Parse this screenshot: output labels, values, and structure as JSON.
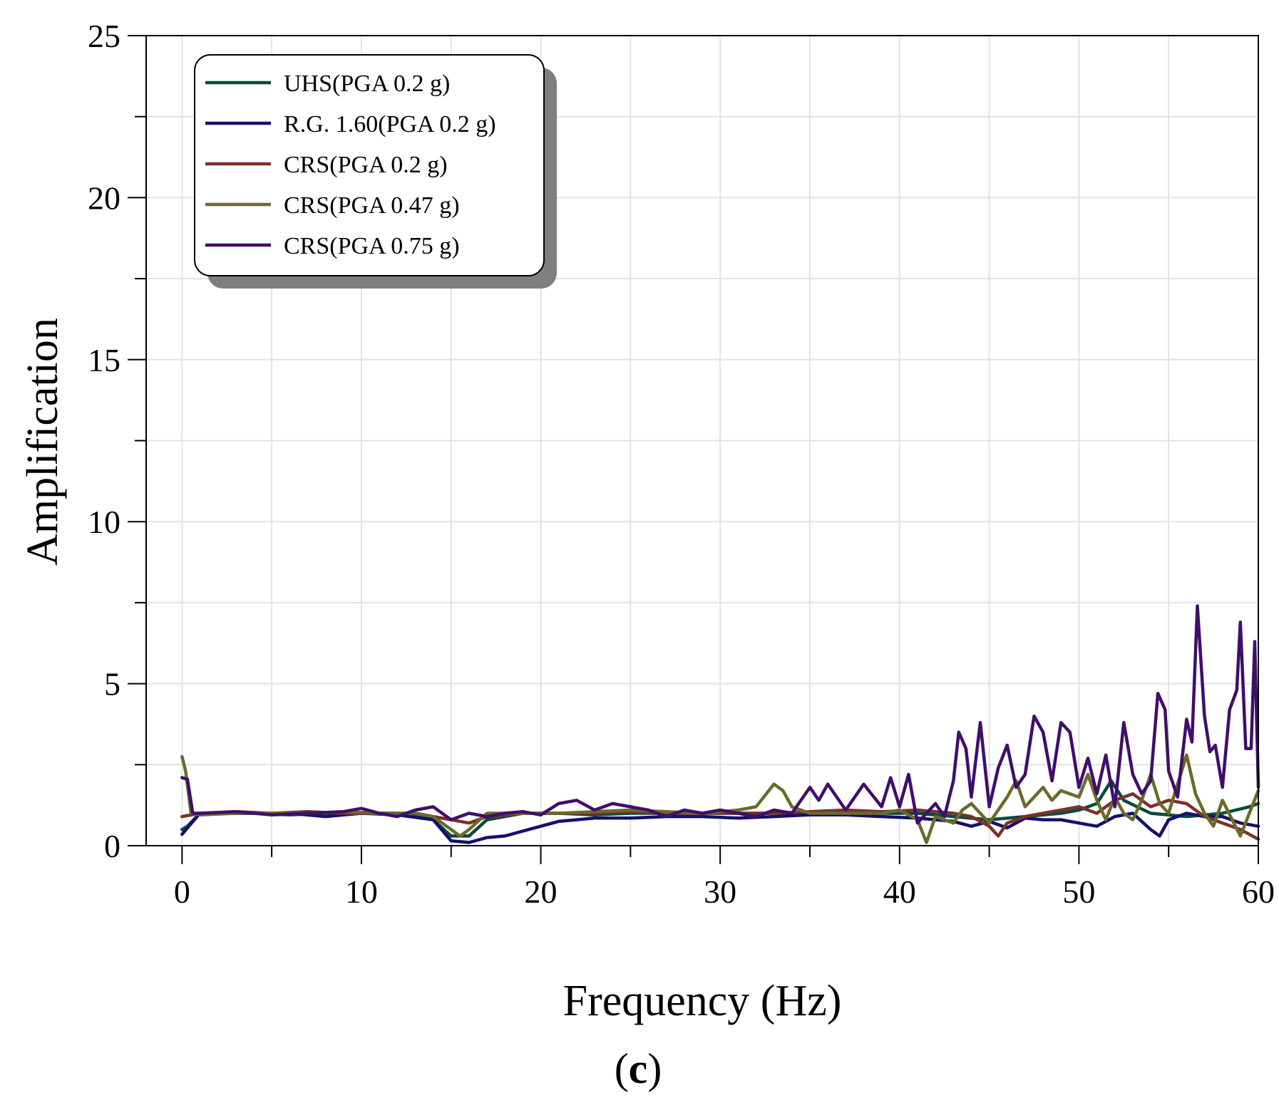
{
  "chart_data": {
    "type": "line",
    "title": "",
    "xlabel": "Frequency (Hz)",
    "ylabel": "Amplification",
    "caption": {
      "open": "(",
      "letter": "c",
      "close": ")"
    },
    "xlim": [
      -2,
      60
    ],
    "ylim": [
      0,
      25
    ],
    "xticks": [
      0,
      10,
      20,
      30,
      40,
      50,
      60
    ],
    "yticks": [
      0,
      5,
      10,
      15,
      20,
      25
    ],
    "xtick_labels": [
      "0",
      "10",
      "20",
      "30",
      "40",
      "50",
      "60"
    ],
    "ytick_labels": [
      "0",
      "5",
      "10",
      "15",
      "20",
      "25"
    ],
    "grid": true,
    "legend_position": "top-left",
    "series": [
      {
        "name": "UHS(PGA 0.2 g)",
        "color": "#0b4a3e",
        "points": [
          [
            0,
            0.5
          ],
          [
            0.3,
            0.6
          ],
          [
            1,
            1
          ],
          [
            2,
            1
          ],
          [
            4,
            1
          ],
          [
            6,
            0.95
          ],
          [
            8,
            1
          ],
          [
            10,
            1
          ],
          [
            12,
            1
          ],
          [
            13,
            0.9
          ],
          [
            14,
            0.8
          ],
          [
            15,
            0.3
          ],
          [
            16,
            0.3
          ],
          [
            17,
            0.8
          ],
          [
            19,
            1
          ],
          [
            21,
            1
          ],
          [
            23,
            0.95
          ],
          [
            25,
            1
          ],
          [
            27,
            1
          ],
          [
            29,
            1
          ],
          [
            31,
            1
          ],
          [
            33,
            1
          ],
          [
            35,
            1
          ],
          [
            37,
            1
          ],
          [
            39,
            1
          ],
          [
            41,
            1
          ],
          [
            43,
            0.9
          ],
          [
            45,
            0.8
          ],
          [
            47,
            0.9
          ],
          [
            49,
            1
          ],
          [
            50,
            1.1
          ],
          [
            51,
            1.3
          ],
          [
            51.8,
            2.0
          ],
          [
            52.5,
            1.4
          ],
          [
            54,
            1
          ],
          [
            56,
            0.9
          ],
          [
            58,
            1
          ],
          [
            59.5,
            1.2
          ],
          [
            60,
            1.3
          ]
        ]
      },
      {
        "name": "R.G. 1.60(PGA 0.2 g)",
        "color": "#13106e",
        "points": [
          [
            0,
            0.35
          ],
          [
            0.3,
            0.55
          ],
          [
            1,
            1
          ],
          [
            2,
            1
          ],
          [
            4,
            1
          ],
          [
            6,
            1
          ],
          [
            8,
            0.9
          ],
          [
            10,
            1
          ],
          [
            12,
            0.95
          ],
          [
            14,
            0.8
          ],
          [
            15,
            0.15
          ],
          [
            16,
            0.1
          ],
          [
            17,
            0.25
          ],
          [
            18,
            0.3
          ],
          [
            19,
            0.45
          ],
          [
            20,
            0.6
          ],
          [
            21,
            0.75
          ],
          [
            22,
            0.8
          ],
          [
            23,
            0.85
          ],
          [
            25,
            0.85
          ],
          [
            27,
            0.9
          ],
          [
            29,
            0.9
          ],
          [
            31,
            0.85
          ],
          [
            33,
            0.9
          ],
          [
            35,
            0.95
          ],
          [
            37,
            0.95
          ],
          [
            39,
            0.9
          ],
          [
            41,
            0.85
          ],
          [
            43,
            0.75
          ],
          [
            44,
            0.6
          ],
          [
            45,
            0.75
          ],
          [
            46,
            0.55
          ],
          [
            47,
            0.85
          ],
          [
            48,
            0.8
          ],
          [
            49,
            0.8
          ],
          [
            50,
            0.7
          ],
          [
            51,
            0.6
          ],
          [
            52,
            0.9
          ],
          [
            53,
            1.0
          ],
          [
            54,
            0.5
          ],
          [
            54.5,
            0.3
          ],
          [
            55,
            0.8
          ],
          [
            56,
            1
          ],
          [
            57,
            0.9
          ],
          [
            58,
            0.9
          ],
          [
            59,
            0.7
          ],
          [
            60,
            0.6
          ]
        ]
      },
      {
        "name": "CRS(PGA 0.2 g)",
        "color": "#7a3228",
        "points": [
          [
            0,
            0.9
          ],
          [
            1,
            1
          ],
          [
            3,
            1.05
          ],
          [
            5,
            1
          ],
          [
            7,
            1.05
          ],
          [
            9,
            1
          ],
          [
            11,
            1
          ],
          [
            13,
            1
          ],
          [
            14,
            0.9
          ],
          [
            15,
            0.8
          ],
          [
            16,
            0.7
          ],
          [
            17,
            0.9
          ],
          [
            19,
            1
          ],
          [
            21,
            1
          ],
          [
            23,
            1
          ],
          [
            25,
            1.05
          ],
          [
            27,
            1
          ],
          [
            29,
            1
          ],
          [
            31,
            1
          ],
          [
            33,
            1
          ],
          [
            35,
            1.05
          ],
          [
            37,
            1.1
          ],
          [
            39,
            1.05
          ],
          [
            41,
            1.1
          ],
          [
            43,
            1
          ],
          [
            44,
            0.9
          ],
          [
            45,
            0.6
          ],
          [
            45.5,
            0.3
          ],
          [
            46,
            0.7
          ],
          [
            47,
            0.9
          ],
          [
            48,
            1
          ],
          [
            49,
            1.1
          ],
          [
            50,
            1.2
          ],
          [
            51,
            1
          ],
          [
            52,
            1.4
          ],
          [
            53,
            1.6
          ],
          [
            54,
            1.2
          ],
          [
            55,
            1.4
          ],
          [
            56,
            1.3
          ],
          [
            57,
            0.9
          ],
          [
            58,
            0.7
          ],
          [
            59,
            0.5
          ],
          [
            60,
            0.2
          ]
        ]
      },
      {
        "name": "CRS(PGA 0.47 g)",
        "color": "#6a6a2c",
        "points": [
          [
            0,
            2.75
          ],
          [
            0.2,
            2.3
          ],
          [
            0.5,
            1.0
          ],
          [
            1,
            0.95
          ],
          [
            3,
            1
          ],
          [
            5,
            1
          ],
          [
            7,
            1
          ],
          [
            9,
            1.05
          ],
          [
            11,
            1
          ],
          [
            13,
            1
          ],
          [
            14,
            0.9
          ],
          [
            15,
            0.5
          ],
          [
            15.5,
            0.3
          ],
          [
            16,
            0.5
          ],
          [
            17,
            1
          ],
          [
            19,
            1
          ],
          [
            21,
            1
          ],
          [
            23,
            1.05
          ],
          [
            25,
            1.1
          ],
          [
            27,
            1.05
          ],
          [
            29,
            1
          ],
          [
            31,
            1.1
          ],
          [
            32,
            1.2
          ],
          [
            33,
            1.9
          ],
          [
            33.5,
            1.7
          ],
          [
            34,
            1.2
          ],
          [
            35,
            1
          ],
          [
            37,
            1
          ],
          [
            39,
            1
          ],
          [
            40,
            1.1
          ],
          [
            41,
            0.8
          ],
          [
            41.5,
            0.1
          ],
          [
            42,
            0.9
          ],
          [
            43,
            0.7
          ],
          [
            43.5,
            1.1
          ],
          [
            44,
            1.3
          ],
          [
            45,
            0.7
          ],
          [
            46,
            1.5
          ],
          [
            46.5,
            2.0
          ],
          [
            47,
            1.2
          ],
          [
            48,
            1.8
          ],
          [
            48.5,
            1.4
          ],
          [
            49,
            1.7
          ],
          [
            50,
            1.5
          ],
          [
            50.5,
            2.2
          ],
          [
            51,
            1.4
          ],
          [
            51.5,
            0.8
          ],
          [
            52,
            1.5
          ],
          [
            52.5,
            1.0
          ],
          [
            53,
            0.8
          ],
          [
            53.5,
            1.4
          ],
          [
            54,
            2.2
          ],
          [
            54.5,
            1.3
          ],
          [
            55,
            1.0
          ],
          [
            56,
            2.8
          ],
          [
            56.5,
            1.6
          ],
          [
            57,
            1.0
          ],
          [
            57.5,
            0.6
          ],
          [
            58,
            1.4
          ],
          [
            59,
            0.3
          ],
          [
            59.5,
            1.0
          ],
          [
            60,
            1.7
          ]
        ]
      },
      {
        "name": "CRS(PGA 0.75 g)",
        "color": "#3f0f6b",
        "points": [
          [
            0,
            2.1
          ],
          [
            0.3,
            2.05
          ],
          [
            0.6,
            1.0
          ],
          [
            1,
            1
          ],
          [
            3,
            1.05
          ],
          [
            5,
            0.95
          ],
          [
            7,
            1
          ],
          [
            9,
            1.05
          ],
          [
            10,
            1.15
          ],
          [
            11,
            1
          ],
          [
            12,
            0.9
          ],
          [
            13,
            1.1
          ],
          [
            14,
            1.2
          ],
          [
            15,
            0.8
          ],
          [
            16,
            1.0
          ],
          [
            17,
            0.9
          ],
          [
            18,
            1
          ],
          [
            19,
            1.05
          ],
          [
            20,
            0.95
          ],
          [
            21,
            1.3
          ],
          [
            22,
            1.4
          ],
          [
            23,
            1.1
          ],
          [
            24,
            1.3
          ],
          [
            25,
            1.2
          ],
          [
            26,
            1.1
          ],
          [
            27,
            0.9
          ],
          [
            28,
            1.1
          ],
          [
            29,
            1.0
          ],
          [
            30,
            1.1
          ],
          [
            31,
            1.0
          ],
          [
            32,
            0.9
          ],
          [
            33,
            1.1
          ],
          [
            34,
            1.0
          ],
          [
            35,
            1.8
          ],
          [
            35.5,
            1.4
          ],
          [
            36,
            1.9
          ],
          [
            37,
            1.1
          ],
          [
            38,
            1.9
          ],
          [
            39,
            1.2
          ],
          [
            39.5,
            2.1
          ],
          [
            40,
            1.2
          ],
          [
            40.5,
            2.2
          ],
          [
            41,
            0.7
          ],
          [
            42,
            1.3
          ],
          [
            42.5,
            0.9
          ],
          [
            43,
            2.0
          ],
          [
            43.3,
            3.5
          ],
          [
            43.7,
            3.0
          ],
          [
            44,
            1.5
          ],
          [
            44.5,
            3.8
          ],
          [
            45,
            1.2
          ],
          [
            45.5,
            2.4
          ],
          [
            46,
            3.1
          ],
          [
            46.5,
            1.8
          ],
          [
            47,
            2.2
          ],
          [
            47.5,
            4.0
          ],
          [
            48,
            3.5
          ],
          [
            48.5,
            2.0
          ],
          [
            49,
            3.8
          ],
          [
            49.5,
            3.5
          ],
          [
            50,
            1.8
          ],
          [
            50.5,
            2.7
          ],
          [
            51,
            1.6
          ],
          [
            51.5,
            2.8
          ],
          [
            52,
            1.2
          ],
          [
            52.5,
            3.8
          ],
          [
            53,
            2.2
          ],
          [
            53.5,
            1.6
          ],
          [
            54,
            2.0
          ],
          [
            54.4,
            4.7
          ],
          [
            54.8,
            4.2
          ],
          [
            55,
            2.3
          ],
          [
            55.5,
            1.5
          ],
          [
            56,
            3.9
          ],
          [
            56.3,
            3.2
          ],
          [
            56.6,
            7.4
          ],
          [
            57,
            4.0
          ],
          [
            57.3,
            2.9
          ],
          [
            57.6,
            3.1
          ],
          [
            58,
            1.8
          ],
          [
            58.4,
            4.2
          ],
          [
            58.8,
            4.8
          ],
          [
            59,
            6.9
          ],
          [
            59.3,
            3.0
          ],
          [
            59.6,
            3.0
          ],
          [
            59.8,
            6.3
          ],
          [
            60,
            1.8
          ]
        ]
      }
    ]
  }
}
